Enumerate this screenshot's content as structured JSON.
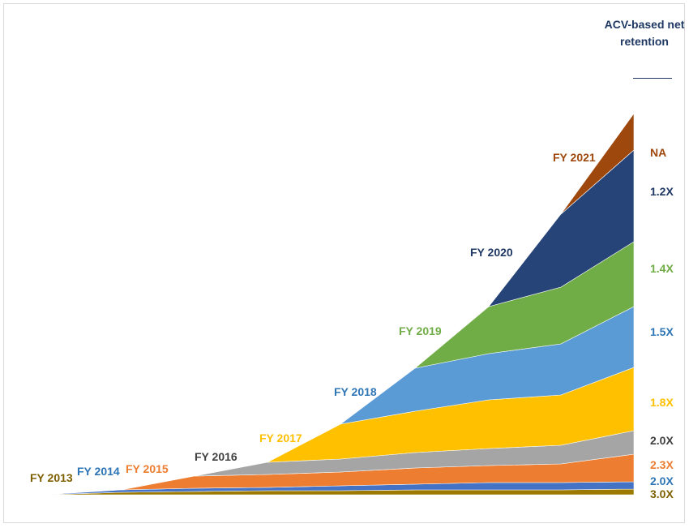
{
  "chart_data": {
    "type": "area",
    "stacked": true,
    "title": "",
    "xlabel": "",
    "ylabel": "",
    "x": [
      0,
      1,
      2,
      3,
      4,
      5,
      6,
      7,
      8
    ],
    "legend_title": "ACV-based net retention",
    "series": [
      {
        "name": "FY 2013",
        "retention": "3.0X",
        "color": "#9C7A00",
        "label_color": "#7F6000",
        "values": [
          0,
          3,
          4,
          5,
          5,
          6,
          6,
          6,
          7
        ]
      },
      {
        "name": "FY 2014",
        "retention": "2.0X",
        "color": "#4472C4",
        "label_color": "#2E75B6",
        "values": [
          0,
          3,
          4,
          4,
          6,
          7,
          9,
          9,
          9
        ]
      },
      {
        "name": "FY 2015",
        "retention": "2.3X",
        "color": "#ED7D31",
        "label_color": "#ED7D31",
        "values": [
          0,
          0,
          15,
          16,
          17,
          20,
          21,
          23,
          34
        ]
      },
      {
        "name": "FY 2016",
        "retention": "2.0X",
        "color": "#A5A5A5",
        "label_color": "#404040",
        "values": [
          0,
          0,
          0,
          15,
          16,
          19,
          21,
          23,
          29
        ]
      },
      {
        "name": "FY 2017",
        "retention": "1.8X",
        "color": "#FFC000",
        "label_color": "#FFC000",
        "values": [
          0,
          0,
          0,
          0,
          43,
          51,
          60,
          62,
          78
        ]
      },
      {
        "name": "FY 2018",
        "retention": "1.5X",
        "color": "#5B9BD5",
        "label_color": "#2E75B6",
        "values": [
          0,
          0,
          0,
          0,
          0,
          53,
          57,
          63,
          75
        ]
      },
      {
        "name": "FY 2019",
        "retention": "1.4X",
        "color": "#70AD47",
        "label_color": "#70AD47",
        "values": [
          0,
          0,
          0,
          0,
          0,
          0,
          58,
          70,
          80
        ]
      },
      {
        "name": "FY 2020",
        "retention": "1.2X",
        "color": "#264478",
        "label_color": "#1F3864",
        "values": [
          0,
          0,
          0,
          0,
          0,
          0,
          0,
          90,
          113
        ]
      },
      {
        "name": "FY 2021",
        "retention": "NA",
        "color": "#9E480E",
        "label_color": "#9E480E",
        "values": [
          0,
          0,
          0,
          0,
          0,
          0,
          0,
          0,
          45
        ]
      }
    ],
    "grid": false,
    "axes_visible": false
  }
}
